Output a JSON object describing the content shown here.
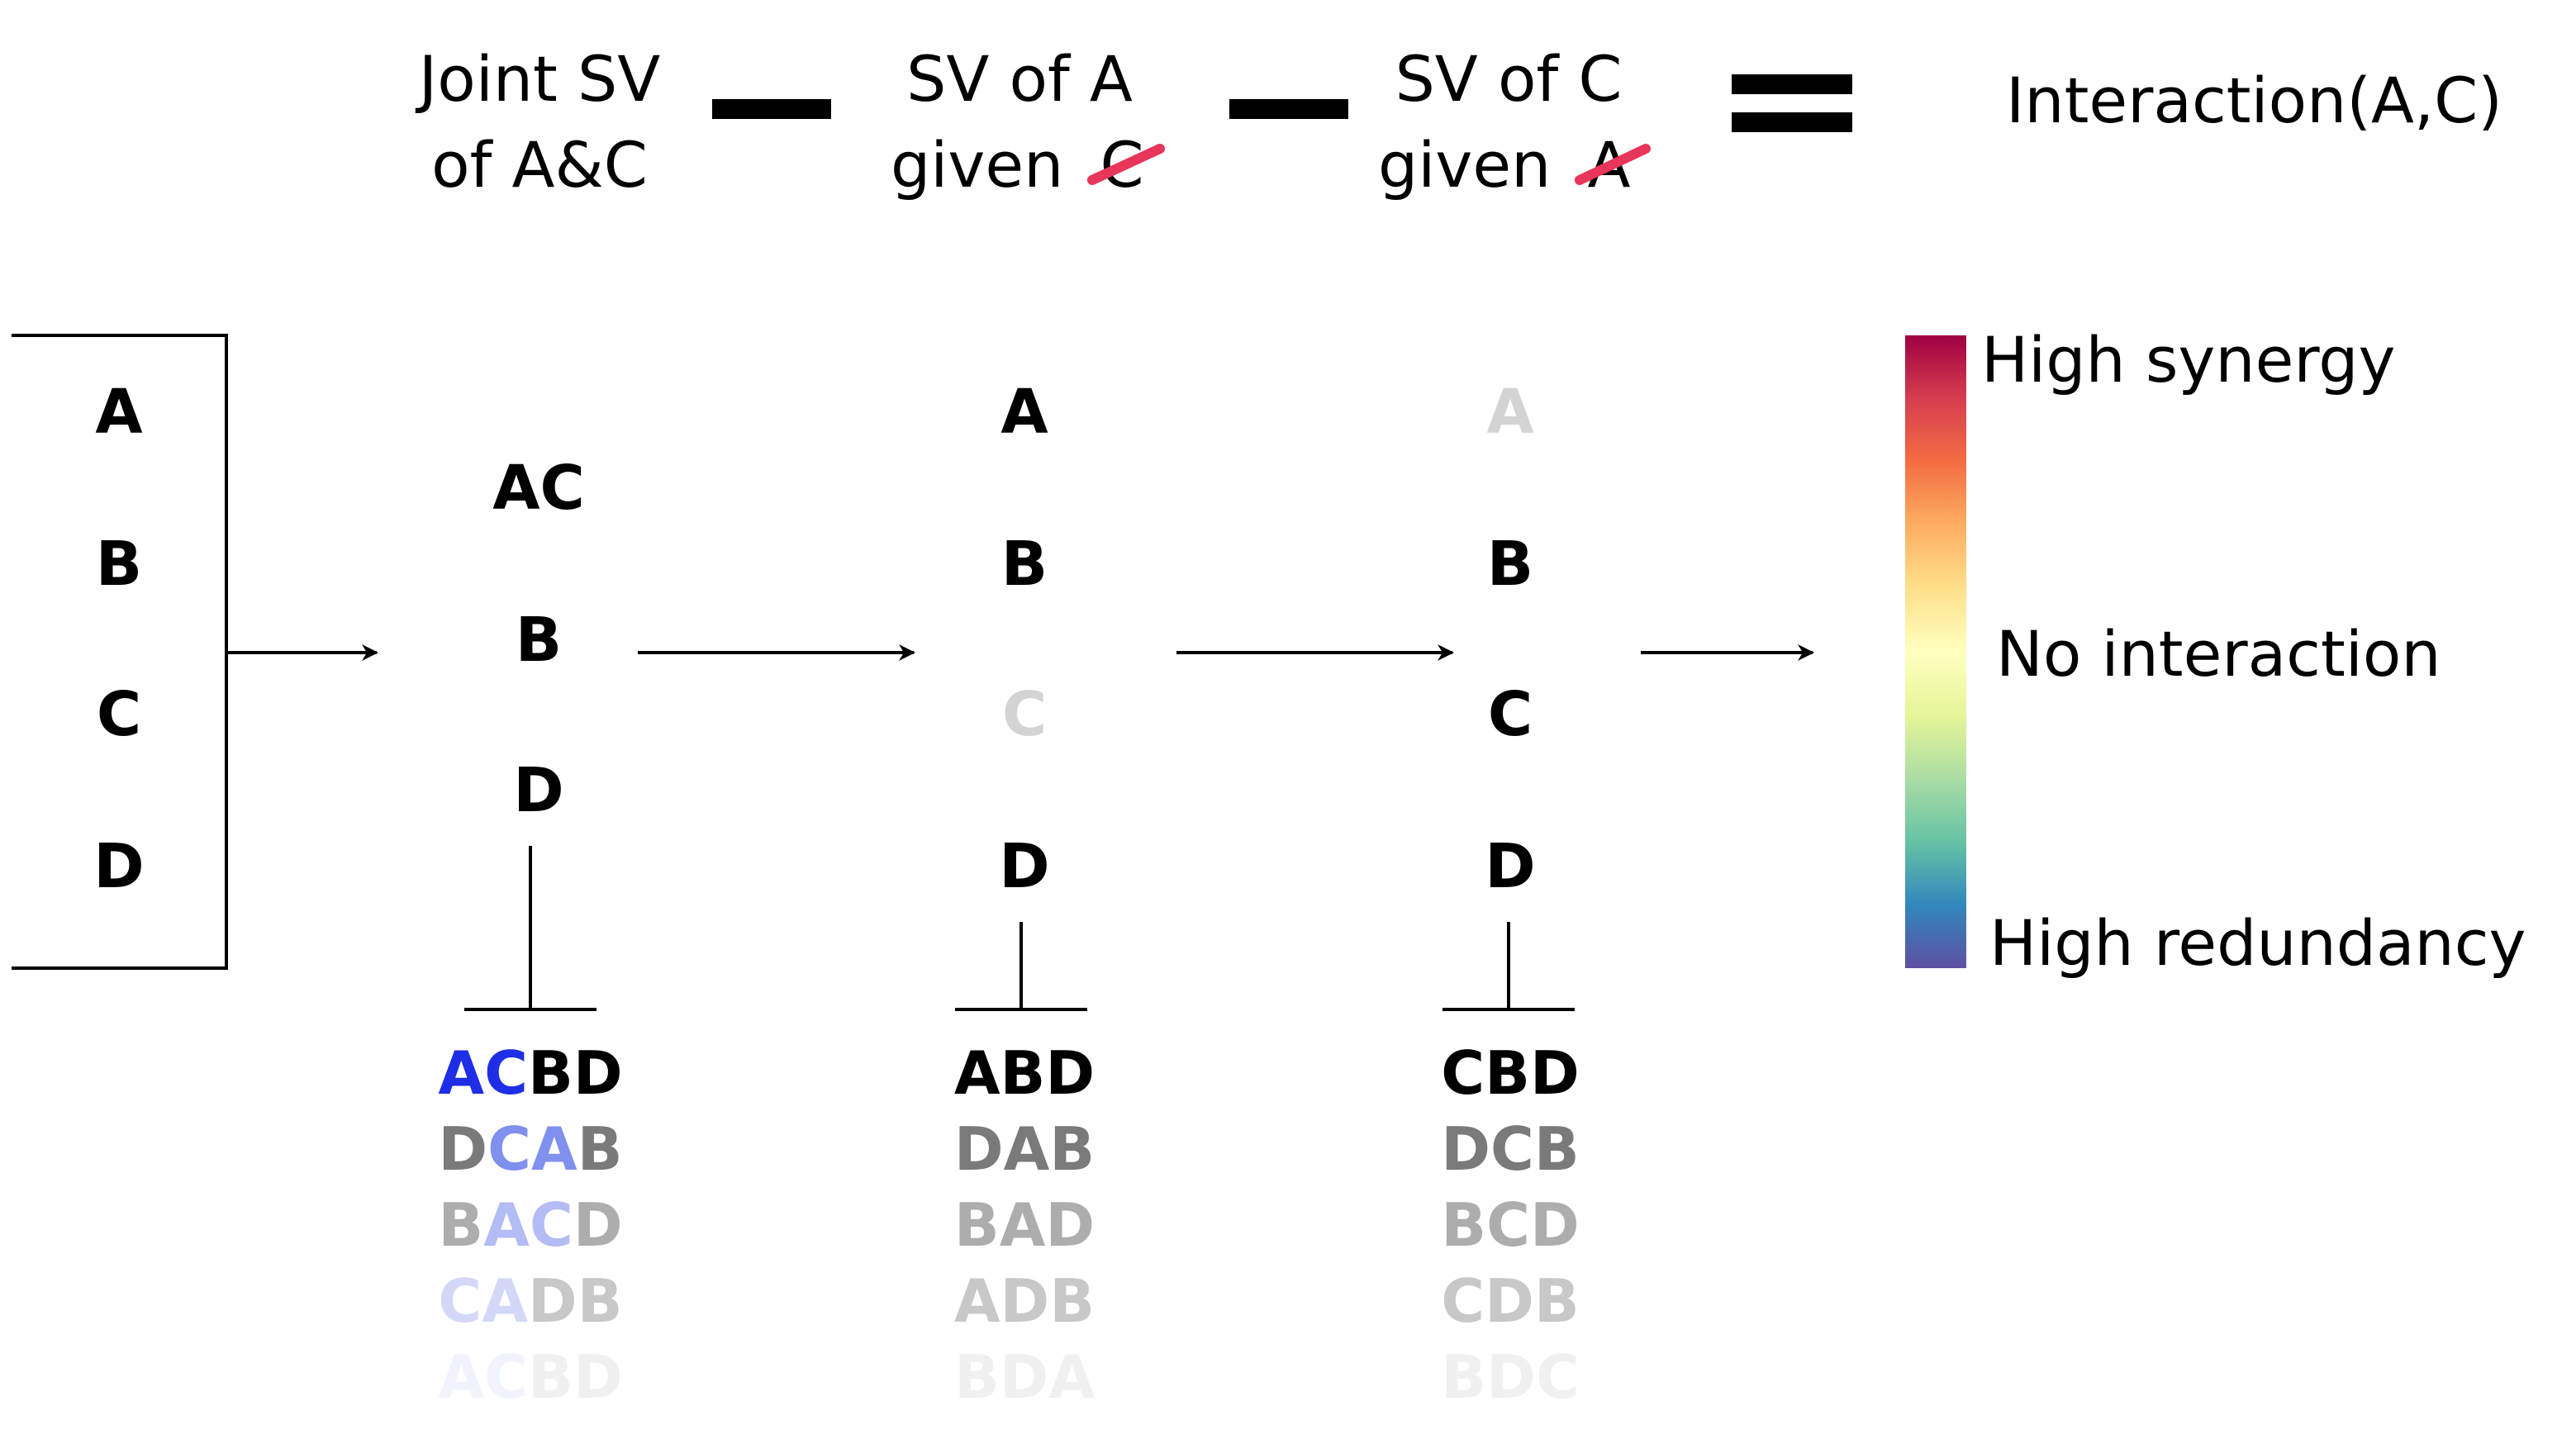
{
  "header": {
    "term1": [
      "Joint SV",
      "of A&C"
    ],
    "term2": {
      "line1": "SV of A",
      "given": "given",
      "struck": "C"
    },
    "term3": {
      "line1": "SV of C",
      "given": "given",
      "struck": "A"
    },
    "result": "Interaction(A,C)",
    "strike_color": "#e8355a"
  },
  "input_box": {
    "items": [
      "A",
      "B",
      "C",
      "D"
    ]
  },
  "stage_joint": {
    "items": [
      "AC",
      "B",
      "D"
    ]
  },
  "stage_a": {
    "items": [
      "A",
      "B",
      "C",
      "D"
    ],
    "faded": [
      "C"
    ]
  },
  "stage_c": {
    "items": [
      "A",
      "B",
      "C",
      "D"
    ],
    "faded": [
      "A"
    ]
  },
  "permutations": {
    "joint": [
      [
        {
          "t": "AC",
          "c": "#1e2ee6"
        },
        {
          "t": "BD",
          "c": "#000000"
        }
      ],
      [
        {
          "t": "D",
          "c": "#7a7a7a"
        },
        {
          "t": "CA",
          "c": "#8090ee"
        },
        {
          "t": "B",
          "c": "#7a7a7a"
        }
      ],
      [
        {
          "t": "B",
          "c": "#adadad"
        },
        {
          "t": "AC",
          "c": "#b3bcf4"
        },
        {
          "t": "D",
          "c": "#adadad"
        }
      ],
      [
        {
          "t": "CA",
          "c": "#d3d8f8"
        },
        {
          "t": "DB",
          "c": "#c8c8c8"
        }
      ],
      [
        {
          "t": "AC",
          "c": "#f0f2fd"
        },
        {
          "t": "BD",
          "c": "#f0f0f0"
        }
      ]
    ],
    "a": [
      "ABD",
      "DAB",
      "BAD",
      "ADB",
      "BDA"
    ],
    "c": [
      "CBD",
      "DCB",
      "BCD",
      "CDB",
      "BDC"
    ],
    "shades": [
      "#000000",
      "#7a7a7a",
      "#adadad",
      "#c8c8c8",
      "#f0f0f0"
    ]
  },
  "legend": {
    "high": "High synergy",
    "mid": "No interaction",
    "low": "High redundancy",
    "gradient": [
      "#9e0142",
      "#d53e4f",
      "#f46d43",
      "#fdae61",
      "#fee08b",
      "#ffffbf",
      "#e6f598",
      "#abdda4",
      "#66c2a5",
      "#3288bd",
      "#5e4fa2"
    ]
  },
  "colors": {
    "faded_letter": "#d3d3d3",
    "ink": "#000000"
  }
}
